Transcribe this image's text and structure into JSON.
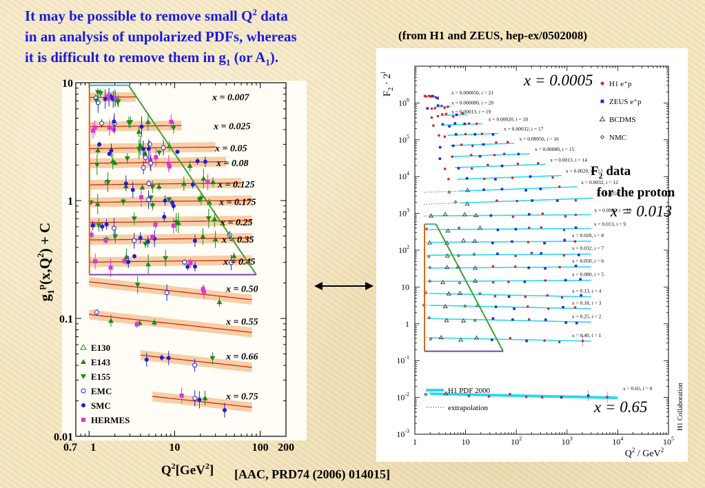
{
  "headline": {
    "line1_pre": "It may be possible to remove small Q",
    "line1_sup": "2",
    "line1_post": " data",
    "line2": "in an analysis of unpolarized PDFs, whereas",
    "line3_pre": "it is difficult to remove them in g",
    "line3_sub1": "1",
    "line3_mid": " (or A",
    "line3_sub2": "1",
    "line3_post": ")."
  },
  "source_note": "(from H1 and ZEUS, hep-ex/0502008)",
  "citation": "[AAC, PRD74 (2006) 014015]",
  "colors": {
    "headline": "#1a1ae0",
    "fit_band": "#f5c9a0",
    "fit_line": "#cc2200",
    "cut_box_left": "#2bb5e0",
    "cut_box_right": "#d2691e",
    "cut_diagonal": "#3aa030",
    "cut_bottom": "#7b3fb5",
    "e143": "#178a17",
    "smc": "#1f1fd0",
    "hermes": "#d23cd2",
    "h1": "#e0202a",
    "zeus": "#1f2fd0",
    "h1_pdf": "#2ad8f0"
  },
  "chart_data": [
    {
      "type": "scatter",
      "xlabel_pre": "Q",
      "xlabel_sup": "2",
      "xlabel_post": "[GeV",
      "xlabel_sup2": "2",
      "xlabel_end": "]",
      "ylabel_pre": "g",
      "ylabel_sub": "1",
      "ylabel_sup": "p",
      "ylabel_mid": "(x,Q",
      "ylabel_sup2": "2",
      "ylabel_post": ") + C",
      "xscale": "log",
      "yscale": "log",
      "xlim": [
        0.7,
        200
      ],
      "ylim": [
        0.01,
        10
      ],
      "x_ticks": [
        "0.7",
        "1",
        "10",
        "100",
        "200"
      ],
      "y_ticks": [
        "10",
        "1",
        "0.1",
        "0.01"
      ],
      "bins": [
        {
          "label": "x = 0.007",
          "yc": 7.6,
          "xmin": 1,
          "xmax": 3.5
        },
        {
          "label": "x = 0.025",
          "yc": 4.3,
          "xmin": 1,
          "xmax": 12
        },
        {
          "label": "x = 0.05",
          "yc": 2.8,
          "xmin": 1,
          "xmax": 30
        },
        {
          "label": "x = 0.08",
          "yc": 2.1,
          "xmin": 1,
          "xmax": 40
        },
        {
          "label": "x = 0.125",
          "yc": 1.38,
          "xmin": 1,
          "xmax": 60
        },
        {
          "label": "x = 0.175",
          "yc": 0.98,
          "xmin": 1,
          "xmax": 80
        },
        {
          "label": "x = 0.25",
          "yc": 0.66,
          "xmin": 1,
          "xmax": 80
        },
        {
          "label": "x = 0.35",
          "yc": 0.47,
          "xmin": 1,
          "xmax": 80
        },
        {
          "label": "x = 0.45",
          "yc": 0.305,
          "xmin": 1,
          "xmax": 80
        },
        {
          "label": "x = 0.50",
          "yc": 0.18,
          "xmin": 1,
          "xmax": 80
        },
        {
          "label": "x = 0.55",
          "yc": 0.095,
          "xmin": 1,
          "xmax": 80
        },
        {
          "label": "x = 0.66",
          "yc": 0.048,
          "xmin": 4,
          "xmax": 80
        },
        {
          "label": "x = 0.75",
          "yc": 0.022,
          "xmin": 5.5,
          "xmax": 80
        }
      ],
      "legend": [
        {
          "name": "E130",
          "marker": "triangle-open"
        },
        {
          "name": "E143",
          "marker": "triangle"
        },
        {
          "name": "E155",
          "marker": "triangle-down"
        },
        {
          "name": "EMC",
          "marker": "circle-open"
        },
        {
          "name": "SMC",
          "marker": "circle"
        },
        {
          "name": "HERMES",
          "marker": "square"
        }
      ]
    },
    {
      "type": "scatter",
      "ylabel_pre": "F",
      "ylabel_sub": "2",
      "ylabel_mid": " · 2",
      "ylabel_sup": "i",
      "xlabel_pre": "Q",
      "xlabel_sup": "2",
      "xlabel_post": " / GeV",
      "xlabel_sup2": "2",
      "xscale": "log",
      "yscale": "log",
      "xlim": [
        1,
        100000
      ],
      "ylim": [
        0.001,
        10000000
      ],
      "x_ticks": [
        {
          "base": "1",
          "exp": ""
        },
        {
          "base": "10",
          "exp": ""
        },
        {
          "base": "10",
          "exp": "2"
        },
        {
          "base": "10",
          "exp": "3"
        },
        {
          "base": "10",
          "exp": "4"
        },
        {
          "base": "10",
          "exp": "5"
        }
      ],
      "y_ticks": [
        {
          "base": "10",
          "exp": "6"
        },
        {
          "base": "10",
          "exp": "5"
        },
        {
          "base": "10",
          "exp": "4"
        },
        {
          "base": "10",
          "exp": "3"
        },
        {
          "base": "10",
          "exp": "2"
        },
        {
          "base": "10",
          "exp": ""
        },
        {
          "base": "1",
          "exp": ""
        },
        {
          "base": "10",
          "exp": "-1"
        },
        {
          "base": "10",
          "exp": "-2"
        },
        {
          "base": "10",
          "exp": "-3"
        }
      ],
      "bins": [
        {
          "label": "x = 0.000050, i = 21",
          "i": 21,
          "f2": 0.74
        },
        {
          "label": "x = 0.000080, i = 20",
          "i": 20,
          "f2": 0.8
        },
        {
          "label": "x = 0.00013, i = 19",
          "i": 19,
          "f2": 0.92
        },
        {
          "label": "x = 0.00020, i = 18",
          "i": 18,
          "f2": 1.0
        },
        {
          "label": "x = 0.00032, i = 17",
          "i": 17,
          "f2": 1.05
        },
        {
          "label": "x = 0.00050, i = 16",
          "i": 16,
          "f2": 1.1
        },
        {
          "label": "x = 0.00080, i = 15",
          "i": 15,
          "f2": 1.1
        },
        {
          "label": "x = 0.0013, i = 14",
          "i": 14,
          "f2": 1.1
        },
        {
          "label": "x = 0.0020, i = 13",
          "i": 13,
          "f2": 1.05
        },
        {
          "label": "x = 0.0032, i = 12",
          "i": 12,
          "f2": 1.0
        },
        {
          "label": "x = 0.0050, i = 11",
          "i": 11,
          "f2": 0.95
        },
        {
          "label": "x = 0.0080, i = 10",
          "i": 10,
          "f2": 0.85
        },
        {
          "label": "x = 0.013, i = 9",
          "i": 9,
          "f2": 0.72
        },
        {
          "label": "x = 0.020, i = 8",
          "i": 8,
          "f2": 0.65
        },
        {
          "label": "x = 0.032, i = 7",
          "i": 7,
          "f2": 0.58
        },
        {
          "label": "x = 0.050, i = 6",
          "i": 6,
          "f2": 0.52
        },
        {
          "label": "x = 0.080, i = 5",
          "i": 5,
          "f2": 0.45
        },
        {
          "label": "x = 0.13, i = 4",
          "i": 4,
          "f2": 0.4
        },
        {
          "label": "x = 0.18, i = 3",
          "i": 3,
          "f2": 0.38
        },
        {
          "label": "x = 0.25, i = 2",
          "i": 2,
          "f2": 0.33
        },
        {
          "label": "x = 0.40, i = 1",
          "i": 1,
          "f2": 0.2
        },
        {
          "label": "x = 0.65, i = 0",
          "i": 0,
          "f2": 0.012
        }
      ],
      "legend": [
        {
          "name": "H1 e⁺p",
          "marker": "circle"
        },
        {
          "name": "ZEUS e⁺p",
          "marker": "square"
        },
        {
          "name": "BCDMS",
          "marker": "triangle-open"
        },
        {
          "name": "NMC",
          "marker": "diamond-open"
        }
      ],
      "legend_lines": [
        {
          "name": "H1 PDF 2000"
        },
        {
          "name": "extrapolation"
        }
      ],
      "collaboration": "H1 Collaboration",
      "annotations": {
        "x_small": "x = 0.0005",
        "f2_title_pre": "F",
        "f2_title_sub": "2",
        "f2_title_post": " data",
        "f2_title_line2": "for the proton",
        "x_mid": "x = 0.013",
        "x_large": "x = 0.65"
      }
    }
  ]
}
